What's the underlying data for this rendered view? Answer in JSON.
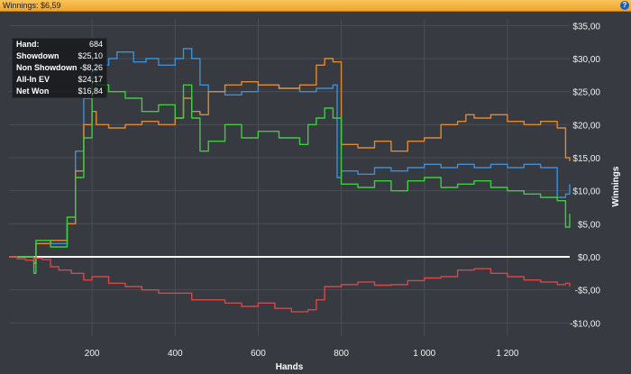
{
  "window": {
    "title": "Winnings: $6,59",
    "help_label": "?",
    "help_icon": "help-icon"
  },
  "stats": [
    {
      "label": "Hand:",
      "value": "684"
    },
    {
      "label": "Showdown",
      "value": "$25,10"
    },
    {
      "label": "Non Showdown",
      "value": "-$8,26"
    },
    {
      "label": "All-In EV",
      "value": "$24,17"
    },
    {
      "label": "Net Won",
      "value": "$16,84"
    }
  ],
  "colors": {
    "blue": "#3d8fd6",
    "orange": "#de8a35",
    "green": "#3fcc3f",
    "red": "#d44848",
    "zero": "#ffffff",
    "background": "#373b41",
    "grid": "#4a4e55"
  },
  "chart_data": {
    "type": "line",
    "xlabel": "Hands",
    "ylabel": "Winnings",
    "xlim": [
      0,
      1350
    ],
    "ylim": [
      -12,
      36
    ],
    "x_ticks": [
      200,
      400,
      600,
      800,
      1000,
      1200
    ],
    "x_tick_labels": [
      "200",
      "400",
      "600",
      "800",
      "1 000",
      "1 200"
    ],
    "y_ticks": [
      35,
      30,
      25,
      20,
      15,
      10,
      5,
      0,
      -5,
      -10
    ],
    "y_tick_labels": [
      "$35,00",
      "$30,00",
      "$25,00",
      "$20,00",
      "$15,00",
      "$10,00",
      "$5,00",
      "$0,00",
      "-$5,00",
      "-$10,00"
    ],
    "grid": true,
    "series": [
      {
        "color": "blue",
        "x": [
          0,
          30,
          60,
          65,
          100,
          140,
          160,
          180,
          200,
          210,
          240,
          260,
          300,
          330,
          360,
          400,
          420,
          440,
          460,
          480,
          520,
          560,
          600,
          650,
          700,
          740,
          780,
          790,
          800,
          840,
          880,
          920,
          960,
          1000,
          1040,
          1080,
          1120,
          1160,
          1200,
          1240,
          1280,
          1320,
          1340,
          1350
        ],
        "y": [
          0,
          0,
          -1,
          2,
          2,
          5,
          16,
          24,
          28,
          29,
          30,
          31,
          29.5,
          30,
          29,
          30,
          31.5,
          30,
          26,
          25,
          24.5,
          25,
          26,
          25.5,
          25,
          25.5,
          26,
          12,
          13,
          12.5,
          13.5,
          13,
          13.5,
          14,
          13.5,
          14,
          13.5,
          14,
          13.5,
          14,
          13.5,
          9,
          9.5,
          11
        ]
      },
      {
        "color": "orange",
        "x": [
          0,
          30,
          60,
          65,
          100,
          140,
          160,
          180,
          200,
          210,
          240,
          280,
          320,
          360,
          400,
          420,
          440,
          460,
          480,
          520,
          560,
          600,
          650,
          700,
          740,
          760,
          780,
          800,
          840,
          880,
          920,
          960,
          1000,
          1040,
          1080,
          1100,
          1120,
          1160,
          1200,
          1240,
          1280,
          1320,
          1340,
          1350
        ],
        "y": [
          0,
          0,
          -1,
          2,
          2.5,
          5,
          13,
          20,
          22,
          20,
          19.5,
          20,
          20.5,
          20,
          21,
          24,
          22,
          21.5,
          25,
          26,
          26.5,
          26,
          25.5,
          26,
          29,
          30,
          29.5,
          17,
          16.5,
          17.5,
          16,
          17.5,
          18,
          20,
          20.5,
          21.5,
          21,
          21.5,
          20.5,
          20,
          20.5,
          19.5,
          15,
          14.5
        ]
      },
      {
        "color": "green",
        "x": [
          0,
          30,
          60,
          65,
          100,
          140,
          160,
          180,
          200,
          210,
          240,
          280,
          320,
          360,
          400,
          420,
          440,
          460,
          480,
          520,
          560,
          600,
          650,
          700,
          720,
          740,
          760,
          780,
          800,
          840,
          880,
          920,
          960,
          1000,
          1040,
          1080,
          1120,
          1160,
          1200,
          1240,
          1280,
          1320,
          1340,
          1350
        ],
        "y": [
          0,
          0,
          -2.5,
          2.5,
          1.5,
          6,
          12,
          18,
          27,
          26,
          25,
          24,
          22,
          23,
          21,
          26,
          21,
          16,
          17.5,
          20,
          18,
          19,
          18,
          17,
          20,
          21,
          22.5,
          21,
          11,
          10.5,
          11.5,
          10,
          11.5,
          12,
          10.5,
          11,
          11.5,
          10.5,
          10,
          9.5,
          9,
          8.5,
          4.5,
          6.5
        ]
      },
      {
        "color": "red",
        "x": [
          0,
          20,
          40,
          60,
          80,
          100,
          120,
          150,
          180,
          200,
          240,
          280,
          320,
          360,
          400,
          440,
          480,
          520,
          560,
          600,
          640,
          680,
          720,
          740,
          760,
          800,
          840,
          880,
          920,
          960,
          1000,
          1040,
          1080,
          1120,
          1160,
          1200,
          1240,
          1280,
          1320,
          1340,
          1350
        ],
        "y": [
          0,
          -0.3,
          -0.5,
          -0.2,
          -0.4,
          -1.5,
          -2,
          -2.5,
          -3.5,
          -3,
          -4,
          -4.5,
          -5,
          -5.5,
          -5.5,
          -6.5,
          -6.5,
          -7,
          -7.5,
          -7,
          -7.8,
          -8.3,
          -8,
          -6.5,
          -4.5,
          -4.2,
          -3.8,
          -4.3,
          -4.2,
          -3.6,
          -3.2,
          -3,
          -2,
          -1.8,
          -2.5,
          -3,
          -3.5,
          -3.8,
          -4.2,
          -4,
          -4.5
        ]
      }
    ]
  }
}
